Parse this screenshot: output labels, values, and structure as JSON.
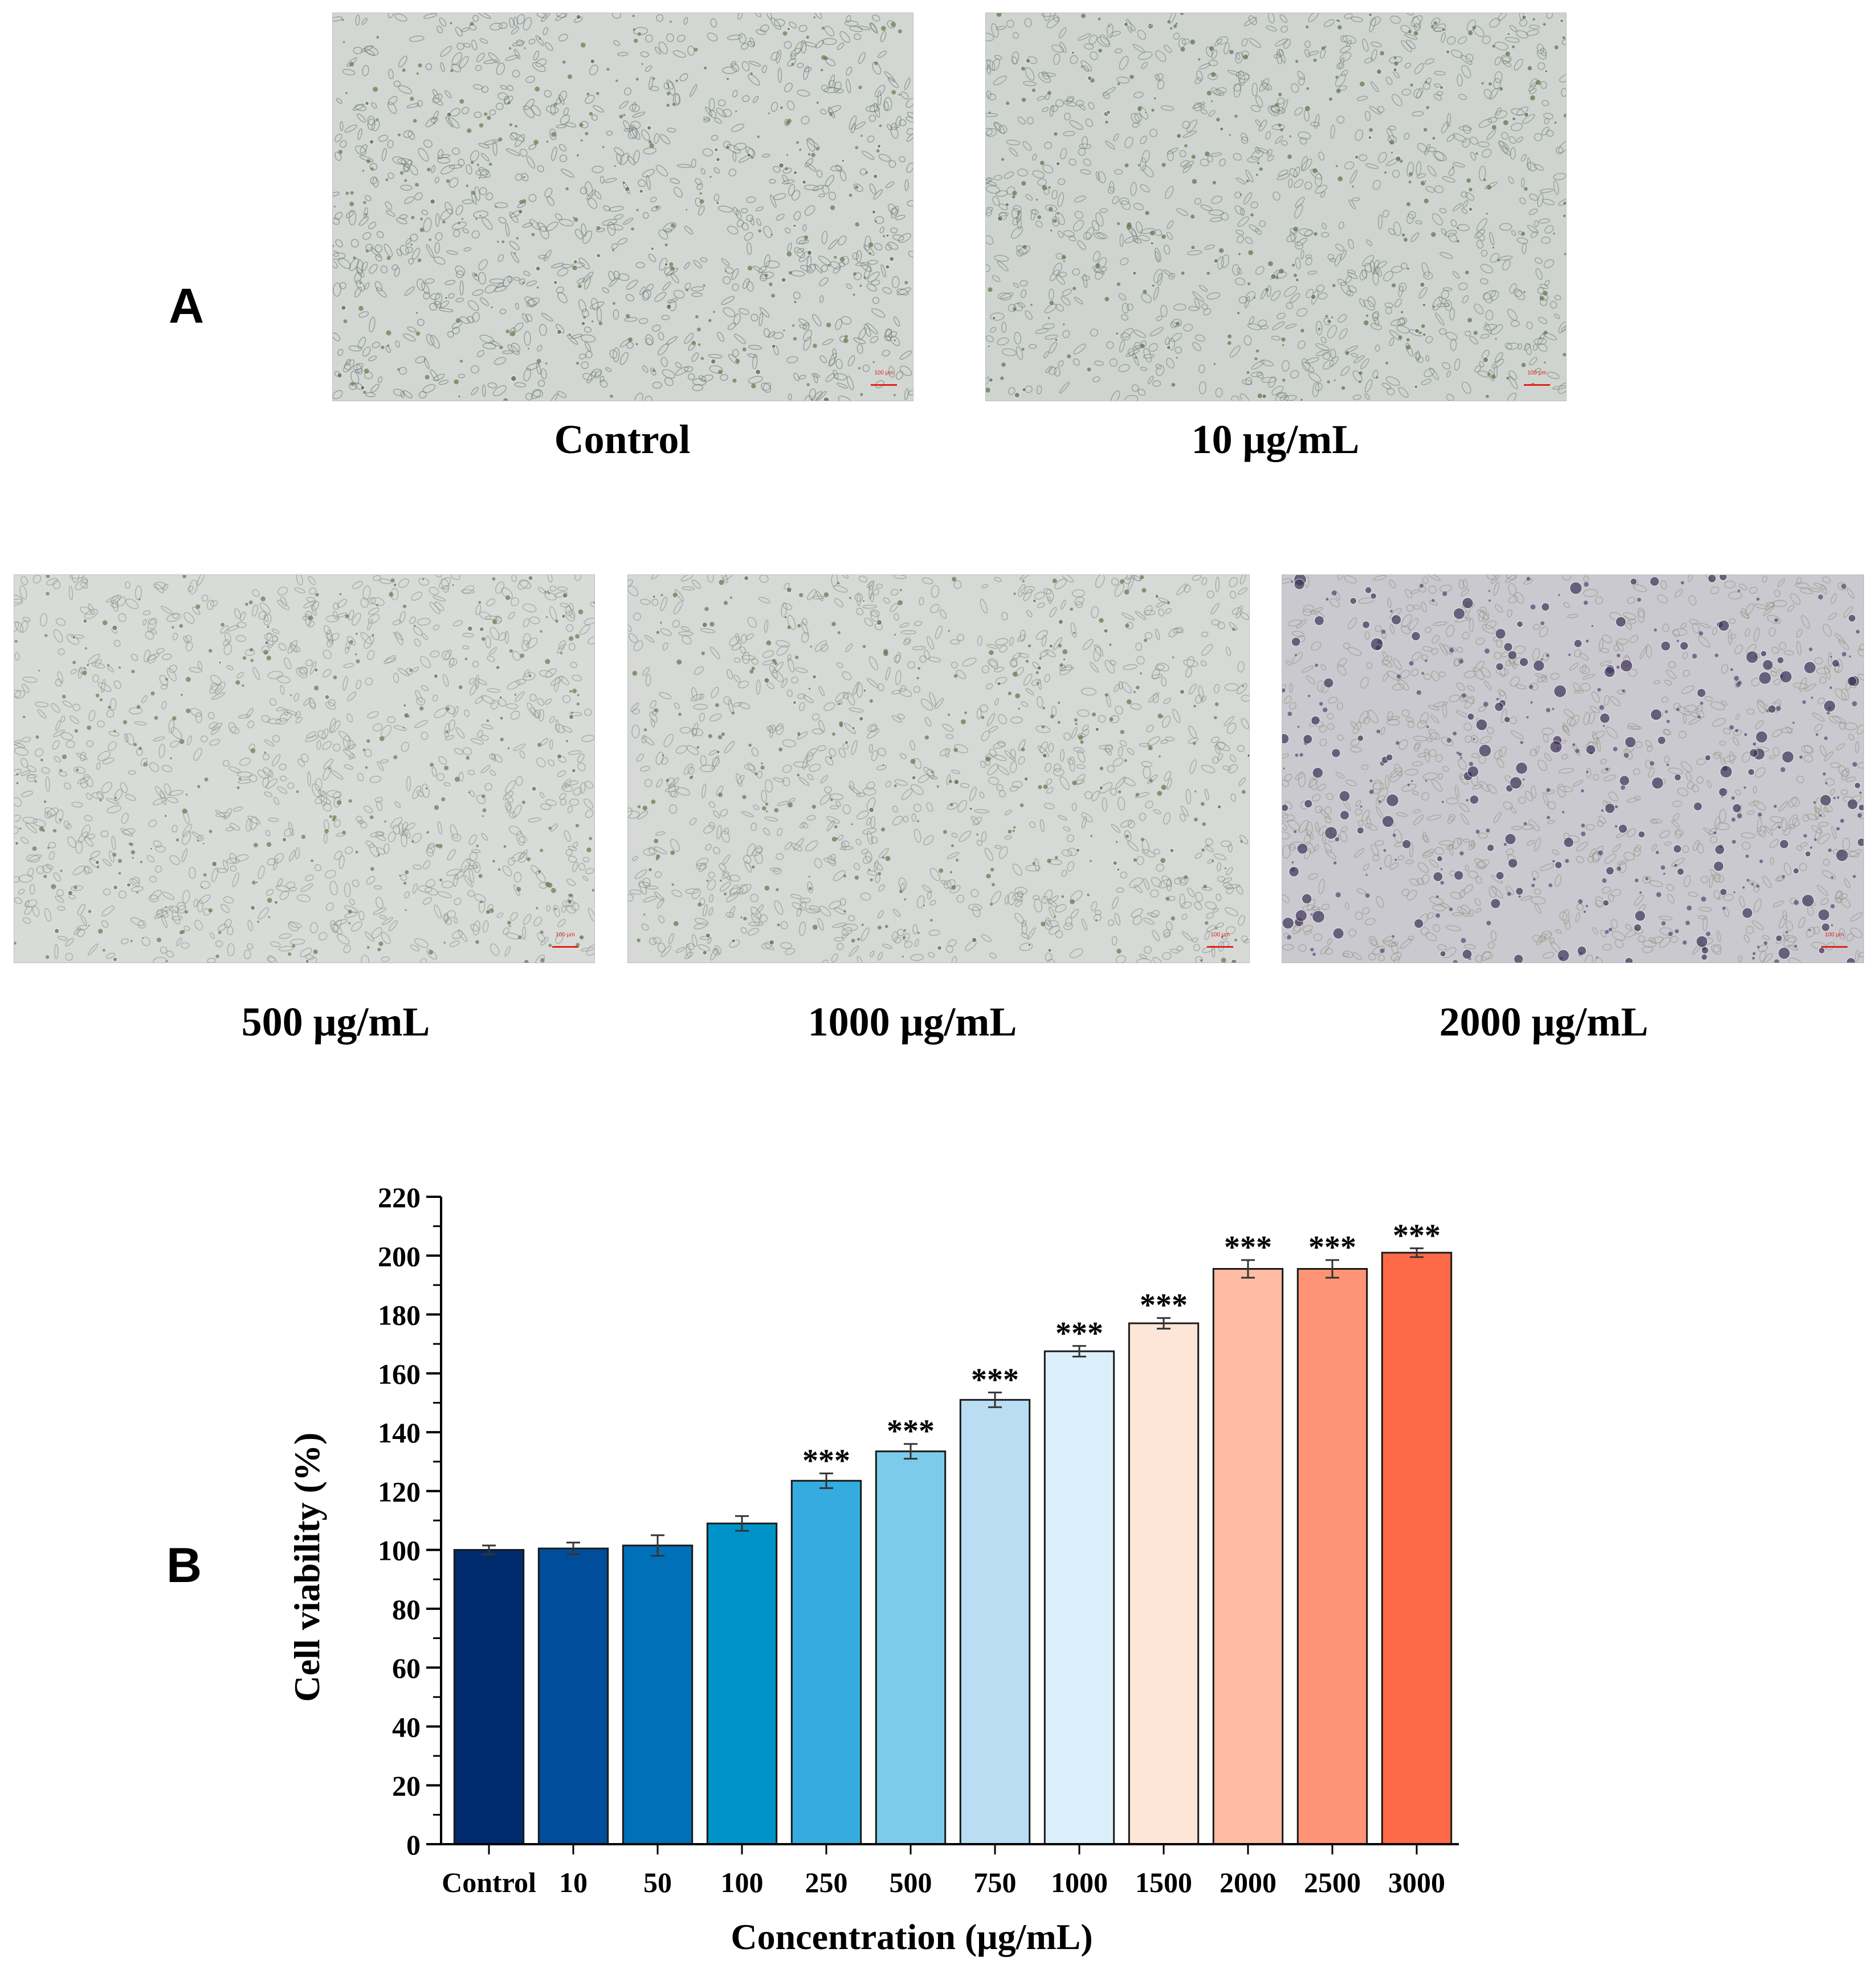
{
  "panel_a": {
    "letter": "A",
    "images": [
      {
        "id": "control",
        "label": "Control",
        "scale_text": "100 μm",
        "tone": "#d3d7d4",
        "cell": "#5f6d68",
        "dot": "#6d7f52",
        "round": "#4f5a4c"
      },
      {
        "id": "c10",
        "label": "10 μg/mL",
        "scale_text": "100 μm",
        "tone": "#d0d4d1",
        "cell": "#66786e",
        "dot": "#627a4e",
        "round": "#5a6853"
      },
      {
        "id": "c500",
        "label": "500 μg/mL",
        "scale_text": "100 μm",
        "tone": "#d8dbd8",
        "cell": "#7e8a84",
        "dot": "#6f7f57",
        "round": "#5d6b5a"
      },
      {
        "id": "c1000",
        "label": "1000 μg/mL",
        "scale_text": "100 μm",
        "tone": "#d6d9d6",
        "cell": "#78867e",
        "dot": "#6a7a52",
        "round": "#556352"
      },
      {
        "id": "c2000",
        "label": "2000 μg/mL",
        "scale_text": "100 μm",
        "tone": "#c9c9cf",
        "cell": "#8a8f7a",
        "dot": "#5d4a7a",
        "round": "#3f3358"
      }
    ]
  },
  "panel_b": {
    "letter": "B"
  },
  "chart_data": {
    "type": "bar",
    "categories": [
      "Control",
      "10",
      "50",
      "100",
      "250",
      "500",
      "750",
      "1000",
      "1500",
      "2000",
      "2500",
      "3000"
    ],
    "values": [
      100,
      100.5,
      101.5,
      109,
      123.5,
      133.5,
      151,
      167.5,
      177,
      195.5,
      195.5,
      201
    ],
    "errors": [
      1.5,
      2,
      3.5,
      2.5,
      2.5,
      2.5,
      2.5,
      1.8,
      1.8,
      3,
      3,
      1.5
    ],
    "annotations": [
      "",
      "",
      "",
      "",
      "***",
      "***",
      "***",
      "***",
      "***",
      "***",
      "***",
      "***"
    ],
    "colors": [
      "#002c6e",
      "#004d9c",
      "#0070b8",
      "#0093c9",
      "#35acdf",
      "#7dcbea",
      "#b9ddf2",
      "#daeffa",
      "#fde6d8",
      "#fdbca3",
      "#fe9475",
      "#fe6a48"
    ],
    "xlabel": "Concentration (μg/mL)",
    "ylabel": "Cell viability (%)",
    "ylim": [
      0,
      220
    ],
    "yticks": [
      0,
      20,
      40,
      60,
      80,
      100,
      120,
      140,
      160,
      180,
      200,
      220
    ],
    "grid": false,
    "legend": "none"
  }
}
